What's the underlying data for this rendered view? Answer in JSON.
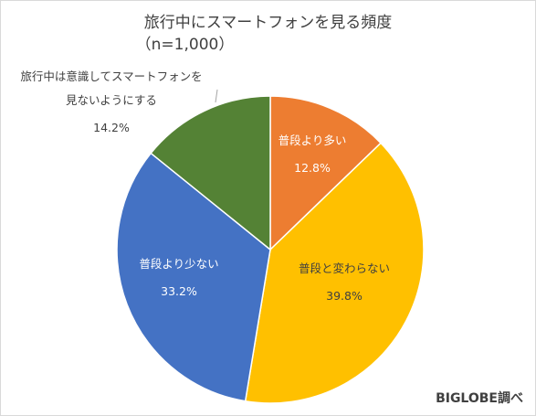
{
  "chart_data": {
    "type": "pie",
    "title": "旅行中にスマートフォンを見る頻度",
    "subtitle": "（n=1,000）",
    "unit": "%",
    "slices": [
      {
        "label": "普段より多い",
        "value": 12.8,
        "value_label": "12.8%",
        "color": "#ED7D31",
        "label_color": "#ffffff"
      },
      {
        "label": "普段と変わらない",
        "value": 39.8,
        "value_label": "39.8%",
        "color": "#FFC000",
        "label_color": "#404040"
      },
      {
        "label": "普段より少ない",
        "value": 33.2,
        "value_label": "33.2%",
        "color": "#4472C4",
        "label_color": "#ffffff"
      },
      {
        "label": "旅行中は意識してスマートフォンを見ないようにする",
        "label_lines": [
          "旅行中は意識してスマートフォンを",
          "見ないようにする"
        ],
        "value": 14.2,
        "value_label": "14.2%",
        "color": "#548235",
        "label_color": "#404040"
      }
    ],
    "start": "12 o'clock",
    "direction": "clockwise",
    "slice_border_color": "#ffffff"
  },
  "credit": "BIGLOBE調べ"
}
